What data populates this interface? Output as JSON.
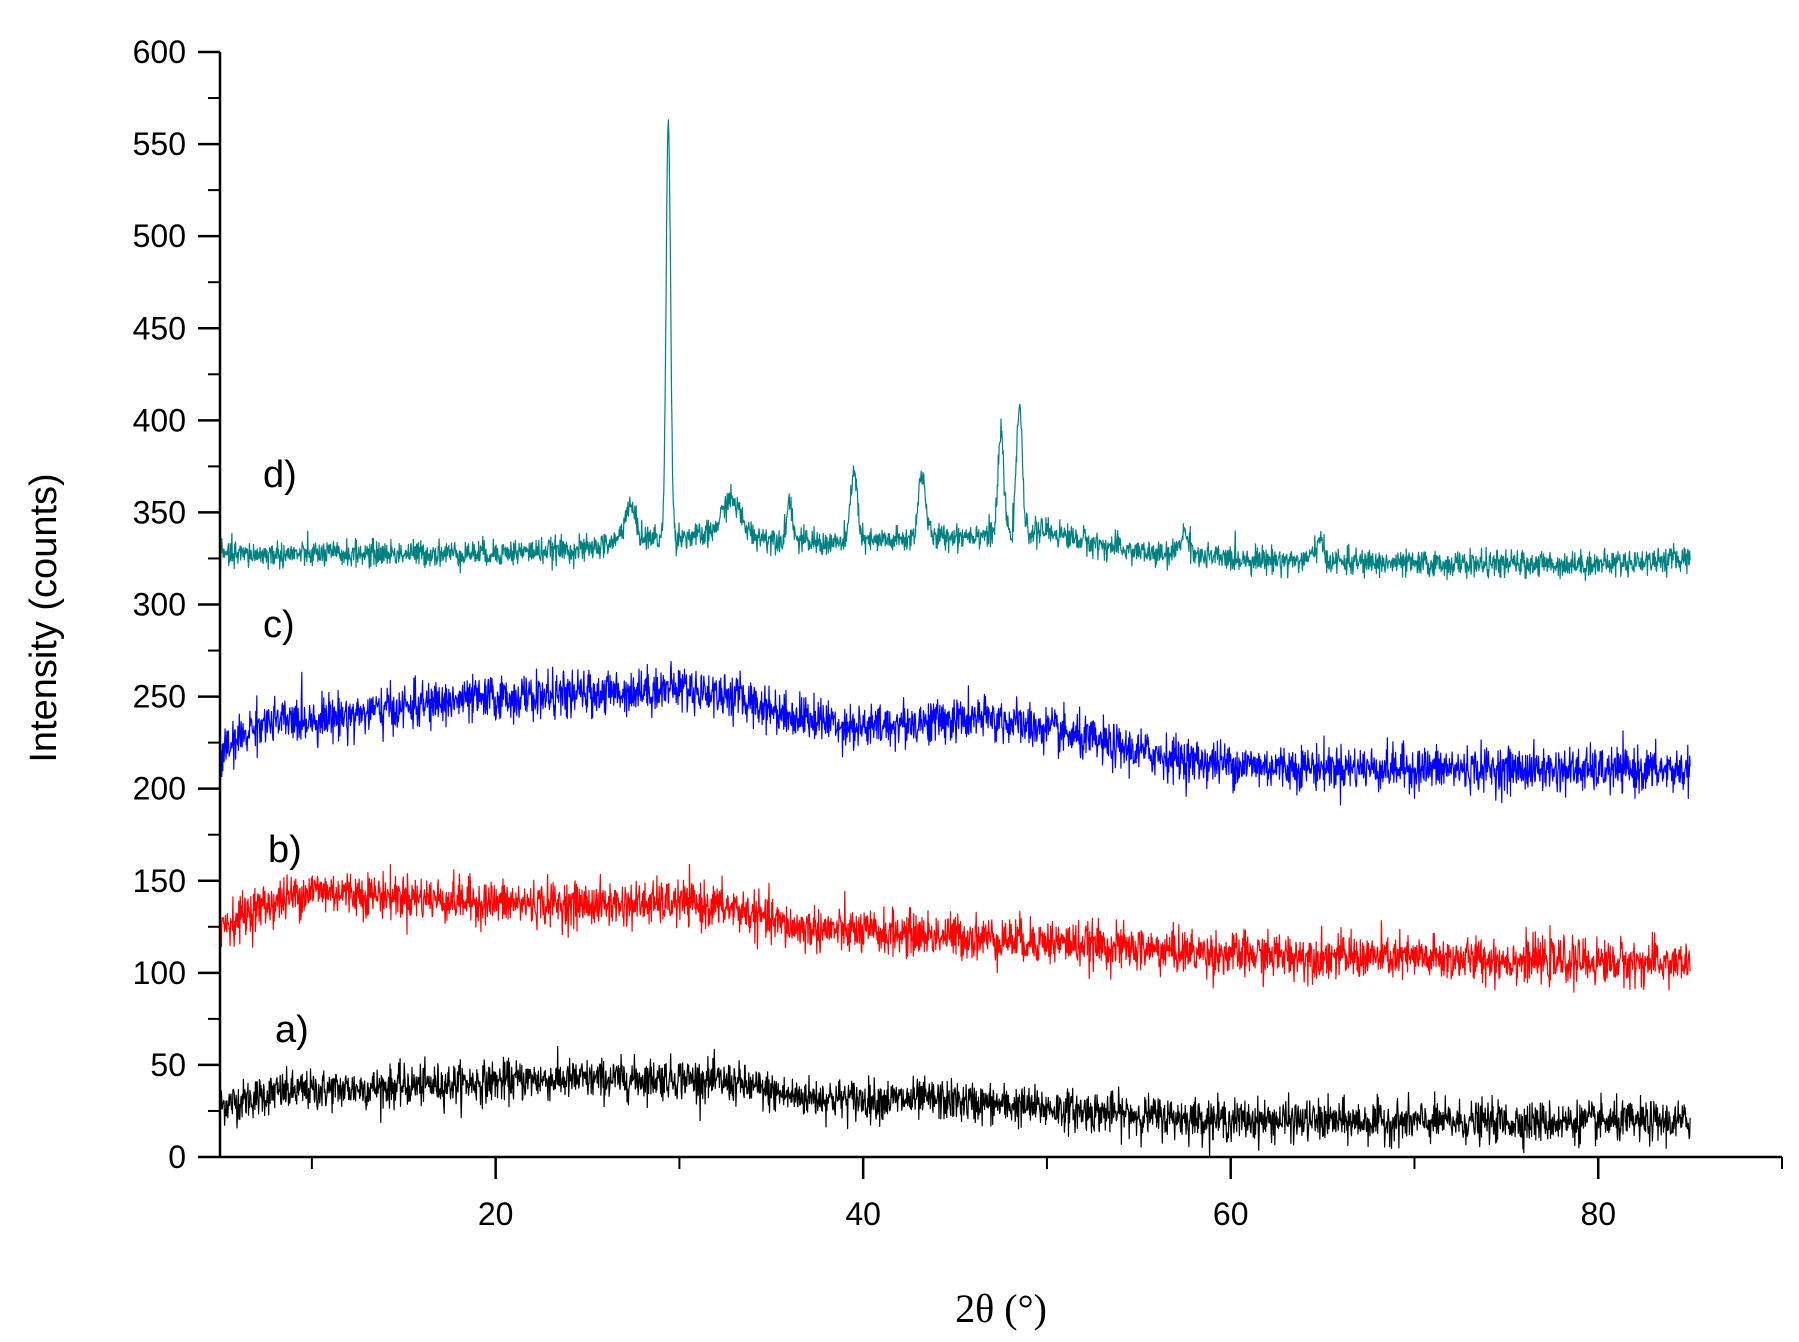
{
  "chart_data": {
    "type": "line",
    "xlabel": "2θ (°)",
    "ylabel": "Intensity (counts)",
    "xlim": [
      5,
      90
    ],
    "ylim": [
      0,
      600
    ],
    "x_ticks": [
      20,
      40,
      60,
      80
    ],
    "y_ticks": [
      0,
      50,
      100,
      150,
      200,
      250,
      300,
      350,
      400,
      450,
      500,
      550,
      600
    ],
    "grid": false,
    "x_range": [
      5,
      85
    ],
    "series": [
      {
        "name": "a)",
        "color": "#000000",
        "noise_amplitude": 11,
        "baseline": [
          [
            5,
            28
          ],
          [
            8,
            35
          ],
          [
            12,
            37
          ],
          [
            18,
            40
          ],
          [
            22,
            42
          ],
          [
            26,
            42
          ],
          [
            30,
            43
          ],
          [
            33,
            40
          ],
          [
            36,
            33
          ],
          [
            40,
            31
          ],
          [
            44,
            31
          ],
          [
            48,
            28
          ],
          [
            52,
            25
          ],
          [
            56,
            22
          ],
          [
            60,
            20
          ],
          [
            70,
            19
          ],
          [
            80,
            19
          ],
          [
            85,
            19
          ]
        ],
        "peaks": []
      },
      {
        "name": "b)",
        "color": "#ff0000",
        "noise_amplitude": 12,
        "baseline": [
          [
            5,
            125
          ],
          [
            7,
            135
          ],
          [
            10,
            145
          ],
          [
            14,
            142
          ],
          [
            20,
            138
          ],
          [
            26,
            137
          ],
          [
            30,
            138
          ],
          [
            33,
            135
          ],
          [
            36,
            125
          ],
          [
            40,
            122
          ],
          [
            45,
            120
          ],
          [
            50,
            117
          ],
          [
            55,
            113
          ],
          [
            60,
            110
          ],
          [
            70,
            108
          ],
          [
            80,
            106
          ],
          [
            85,
            105
          ]
        ],
        "peaks": []
      },
      {
        "name": "c)",
        "color": "#0000ff",
        "noise_amplitude": 12,
        "baseline": [
          [
            5,
            218
          ],
          [
            7,
            235
          ],
          [
            12,
            240
          ],
          [
            18,
            248
          ],
          [
            22,
            250
          ],
          [
            26,
            252
          ],
          [
            30,
            255
          ],
          [
            33,
            250
          ],
          [
            36,
            240
          ],
          [
            40,
            233
          ],
          [
            44,
            237
          ],
          [
            47,
            238
          ],
          [
            50,
            232
          ],
          [
            54,
            222
          ],
          [
            58,
            215
          ],
          [
            62,
            212
          ],
          [
            70,
            211
          ],
          [
            80,
            210
          ],
          [
            85,
            210
          ]
        ],
        "peaks": []
      },
      {
        "name": "d)",
        "color": "#008080",
        "noise_amplitude": 7,
        "baseline": [
          [
            5,
            327
          ],
          [
            20,
            328
          ],
          [
            25,
            330
          ],
          [
            27,
            335
          ],
          [
            30,
            337
          ],
          [
            34,
            337
          ],
          [
            38,
            333
          ],
          [
            42,
            335
          ],
          [
            46,
            338
          ],
          [
            50,
            340
          ],
          [
            53,
            332
          ],
          [
            56,
            327
          ],
          [
            60,
            325
          ],
          [
            70,
            322
          ],
          [
            80,
            322
          ],
          [
            85,
            325
          ]
        ],
        "peaks": [
          [
            27.3,
            18,
            0.3
          ],
          [
            29.4,
            228,
            0.12
          ],
          [
            32.8,
            20,
            0.5
          ],
          [
            36.0,
            22,
            0.15
          ],
          [
            39.5,
            40,
            0.18
          ],
          [
            43.2,
            35,
            0.2
          ],
          [
            47.5,
            55,
            0.15
          ],
          [
            48.5,
            70,
            0.15
          ],
          [
            57.5,
            12,
            0.3
          ],
          [
            64.8,
            10,
            0.25
          ]
        ]
      }
    ]
  }
}
